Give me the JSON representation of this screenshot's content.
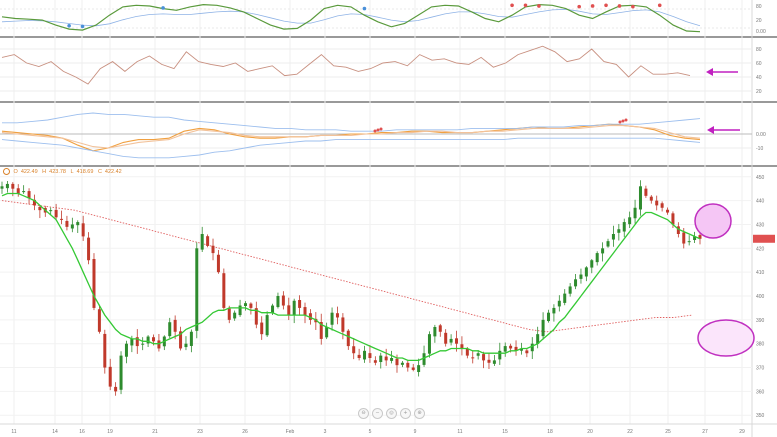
{
  "ohlc": {
    "o": "O",
    "o_val": "422.49",
    "h": "H",
    "h_val": "423.78",
    "l": "L",
    "l_val": "418.69",
    "c": "C",
    "c_val": "422.42"
  },
  "colors": {
    "up": "#2e8b2e",
    "down": "#c0392b",
    "ma": "#35c935",
    "dotted": "#e06060",
    "arrow": "#c020c0",
    "ellipse_fill": "#f5c6f5",
    "ellipse_fill_light": "#fbe5fb",
    "ind1_green": "#5a9a3c",
    "ind1_blue": "#8fb3e6",
    "rsi": "#c89080",
    "macd_orange": "#f0a040",
    "macd_peach": "#f2c29a",
    "macd_blue": "#9dbfee"
  },
  "navigator": {
    "icons": [
      "zoom-out-icon",
      "zoom-minus-icon",
      "reset-icon",
      "zoom-plus-icon",
      "zoom-in-icon"
    ],
    "glyphs": [
      "⊖",
      "−",
      "◎",
      "+",
      "⊕"
    ]
  },
  "chart_data": [
    {
      "type": "line",
      "panel": "indicator-1",
      "ylabel": "",
      "yticks": [
        "80",
        "20",
        "0.00"
      ],
      "series": [
        {
          "values": [
            55,
            50,
            48,
            45,
            30,
            18,
            15,
            30,
            60,
            85,
            90,
            88,
            80,
            75,
            85,
            92,
            90,
            82,
            70,
            50,
            30,
            18,
            20,
            45,
            80,
            90,
            85,
            60,
            40,
            25,
            35,
            60,
            85,
            90,
            88,
            70,
            50,
            40,
            60,
            85,
            92,
            90,
            80,
            60,
            50,
            70,
            88,
            90,
            85,
            60,
            30,
            12,
            10
          ]
        },
        {
          "values": [
            40,
            42,
            44,
            43,
            40,
            35,
            30,
            28,
            34,
            46,
            56,
            62,
            64,
            62,
            62,
            66,
            70,
            72,
            70,
            62,
            52,
            42,
            36,
            36,
            46,
            58,
            64,
            62,
            54,
            45,
            40,
            44,
            54,
            64,
            70,
            70,
            64,
            56,
            54,
            62,
            70,
            76,
            78,
            72,
            64,
            62,
            68,
            74,
            76,
            70,
            56,
            40,
            28
          ]
        }
      ],
      "markers_blue": [
        [
          5,
          28
        ],
        [
          6,
          26
        ],
        [
          12,
          82
        ],
        [
          27,
          80
        ]
      ],
      "markers_red": [
        [
          38,
          90
        ],
        [
          39,
          90
        ],
        [
          40,
          88
        ],
        [
          43,
          86
        ],
        [
          44,
          88
        ],
        [
          45,
          90
        ],
        [
          46,
          88
        ],
        [
          47,
          86
        ],
        [
          49,
          90
        ]
      ]
    },
    {
      "type": "line",
      "panel": "rsi",
      "yticks": [
        "80",
        "60",
        "40",
        "20"
      ],
      "ylim": [
        10,
        90
      ],
      "series": [
        {
          "values": [
            68,
            72,
            60,
            55,
            62,
            48,
            40,
            30,
            52,
            62,
            48,
            62,
            70,
            58,
            52,
            76,
            62,
            58,
            55,
            60,
            48,
            52,
            56,
            42,
            44,
            58,
            72,
            56,
            54,
            48,
            52,
            60,
            62,
            56,
            72,
            64,
            66,
            60,
            58,
            68,
            54,
            60,
            72,
            78,
            84,
            76,
            62,
            66,
            80,
            62,
            58,
            40,
            56,
            44,
            44,
            46,
            42
          ]
        }
      ],
      "arrow": true
    },
    {
      "type": "line",
      "panel": "macd",
      "yticks": [
        "0.00",
        "-10"
      ],
      "series": [
        {
          "values": [
            2,
            1,
            0,
            -1,
            -3,
            -8,
            -12,
            -10,
            -6,
            -4,
            -4,
            -3,
            2,
            4,
            3,
            0,
            -2,
            -3,
            -3,
            -2,
            -2,
            -1,
            -1,
            0,
            0,
            1,
            1,
            2,
            2,
            1,
            1,
            1,
            2,
            3,
            4,
            5,
            4,
            4,
            5,
            6,
            7,
            6,
            5,
            3,
            -1,
            -3,
            -4
          ]
        },
        {
          "values": [
            1,
            0,
            -1,
            -2,
            -3,
            -6,
            -9,
            -10,
            -8,
            -6,
            -5,
            -4,
            0,
            3,
            2,
            1,
            -1,
            -2,
            -2,
            -2,
            -2,
            -1,
            -1,
            -1,
            0,
            0,
            1,
            1,
            2,
            2,
            1,
            1,
            2,
            2,
            3,
            4,
            4,
            4,
            4,
            5,
            6,
            6,
            5,
            4,
            1,
            -2,
            -3
          ]
        },
        {
          "values": [
            8,
            8,
            9,
            10,
            12,
            14,
            15,
            14,
            14,
            13,
            12,
            12,
            10,
            9,
            8,
            7,
            6,
            5,
            4,
            4,
            3,
            3,
            3,
            2,
            2,
            2,
            3,
            3,
            3,
            3,
            3,
            4,
            4,
            4,
            4,
            5,
            5,
            5,
            6,
            6,
            7,
            7,
            7,
            8,
            9,
            10,
            11
          ]
        },
        {
          "values": [
            -4,
            -5,
            -6,
            -7,
            -8,
            -10,
            -12,
            -14,
            -16,
            -17,
            -17,
            -17,
            -16,
            -15,
            -13,
            -12,
            -10,
            -8,
            -7,
            -6,
            -5,
            -5,
            -4,
            -4,
            -4,
            -4,
            -4,
            -4,
            -4,
            -4,
            -4,
            -4,
            -4,
            -4,
            -3,
            -3,
            -3,
            -3,
            -3,
            -3,
            -3,
            -3,
            -3,
            -3,
            -4,
            -5,
            -6
          ]
        }
      ],
      "arrow": true
    },
    {
      "type": "candlestick",
      "panel": "price",
      "yticks": [
        "450",
        "440",
        "430",
        "420",
        "410",
        "400",
        "390",
        "380",
        "370",
        "360",
        "350"
      ],
      "ylim": [
        348,
        452
      ],
      "x_labels": [
        "11",
        "14",
        "16",
        "19",
        "21",
        "23",
        "26",
        "Feb",
        "3",
        "5",
        "9",
        "11",
        "15",
        "18",
        "20",
        "22",
        "25",
        "27",
        "29"
      ],
      "close": [
        446,
        447,
        445,
        443,
        444,
        441,
        438,
        436,
        435,
        436,
        433,
        432,
        429,
        430,
        431,
        425,
        415,
        395,
        385,
        370,
        362,
        360,
        375,
        380,
        382,
        379,
        380,
        383,
        381,
        378,
        383,
        389,
        385,
        378,
        380,
        385,
        420,
        426,
        421,
        418,
        410,
        395,
        390,
        393,
        396,
        397,
        395,
        388,
        384,
        392,
        396,
        400,
        396,
        392,
        398,
        395,
        392,
        390,
        389,
        382,
        387,
        393,
        391,
        385,
        379,
        376,
        374,
        377,
        374,
        372,
        375,
        373,
        374,
        371,
        372,
        370,
        369,
        371,
        376,
        384,
        387,
        385,
        380,
        382,
        380,
        378,
        375,
        374,
        376,
        373,
        372,
        373,
        377,
        379,
        378,
        377,
        378,
        376,
        380,
        384,
        390,
        393,
        395,
        398,
        401,
        404,
        407,
        409,
        412,
        415,
        418,
        420,
        423,
        426,
        428,
        431,
        433,
        437,
        446,
        442,
        440,
        438,
        437,
        435,
        430,
        426,
        422,
        423,
        425,
        424
      ],
      "ma": [
        442,
        443,
        443,
        443,
        442,
        441,
        440,
        438,
        436,
        434,
        432,
        428,
        424,
        420,
        415,
        410,
        405,
        400,
        396,
        392,
        389,
        386,
        384,
        383,
        382,
        382,
        381,
        381,
        380,
        380,
        381,
        382,
        383,
        384,
        386,
        387,
        388,
        389,
        391,
        393,
        394,
        394,
        395,
        395,
        395,
        395,
        394,
        394,
        393,
        393,
        393,
        392,
        392,
        392,
        392,
        392,
        392,
        391,
        390,
        388,
        387,
        386,
        385,
        384,
        383,
        382,
        381,
        380,
        379,
        378,
        377,
        376,
        375,
        374,
        374,
        373,
        373,
        373,
        374,
        375,
        376,
        377,
        377,
        378,
        378,
        378,
        378,
        377,
        377,
        376,
        376,
        376,
        376,
        376,
        377,
        377,
        378,
        378,
        379,
        380,
        382,
        384,
        386,
        389,
        391,
        394,
        397,
        400,
        403,
        406,
        409,
        412,
        415,
        418,
        421,
        424,
        427,
        430,
        433,
        435,
        435,
        434,
        433,
        432,
        430,
        428,
        427,
        426,
        425,
        424
      ],
      "dotted": [
        440,
        439,
        438,
        437,
        436,
        434,
        432,
        430,
        428,
        426,
        424,
        422,
        420,
        418,
        416,
        414,
        412,
        410,
        408,
        406,
        404,
        402,
        400,
        398,
        396,
        394,
        392,
        390,
        388,
        386,
        385,
        386,
        387,
        388,
        389,
        390,
        391,
        391,
        392
      ],
      "arrow": false
    }
  ]
}
